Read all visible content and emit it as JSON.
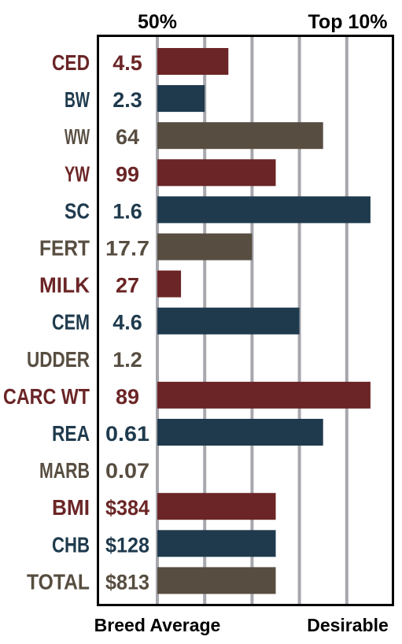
{
  "colors": {
    "maroon": "#6b2526",
    "navy": "#1f3a4d",
    "olive": "#574d40",
    "grid": "#a7a7ae",
    "frame": "#000000"
  },
  "chart_data": {
    "type": "bar",
    "orientation": "horizontal",
    "top_labels": [
      "50%",
      "Top 10%"
    ],
    "bottom_labels": [
      "Breed Average",
      "Desirable"
    ],
    "xlim": [
      0,
      9
    ],
    "grid": true,
    "categories": [
      "CED",
      "BW",
      "WW",
      "YW",
      "SC",
      "FERT",
      "MILK",
      "CEM",
      "UDDER",
      "CARC WT",
      "REA",
      "MARB",
      "BMI",
      "CHB",
      "TOTAL"
    ],
    "value_labels": [
      "4.5",
      "2.3",
      "64",
      "99",
      "1.6",
      "17.7",
      "27",
      "4.6",
      "1.2",
      "89",
      "0.61",
      "0.07",
      "$384",
      "$128",
      "$813"
    ],
    "values": [
      3,
      2,
      7,
      5,
      9,
      4,
      1,
      6,
      0,
      9,
      7,
      0,
      5,
      5,
      5
    ],
    "bar_colors": [
      "maroon",
      "navy",
      "olive",
      "maroon",
      "navy",
      "olive",
      "maroon",
      "navy",
      "olive",
      "maroon",
      "navy",
      "olive",
      "maroon",
      "navy",
      "olive"
    ]
  }
}
